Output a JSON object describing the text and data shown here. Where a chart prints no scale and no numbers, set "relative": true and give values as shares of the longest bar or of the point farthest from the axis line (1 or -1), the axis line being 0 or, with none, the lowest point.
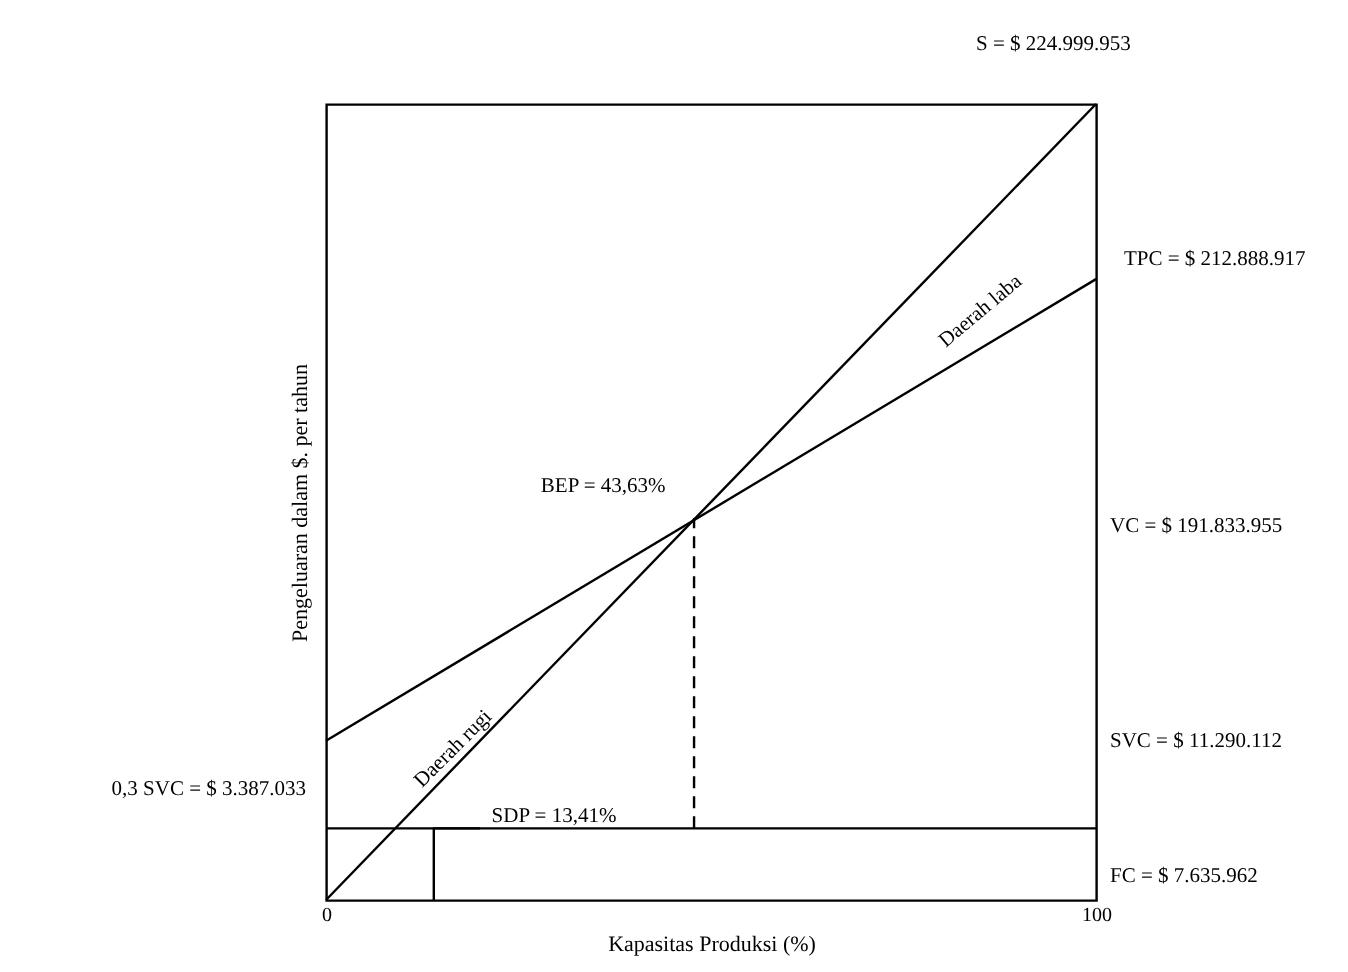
{
  "chart_data": {
    "type": "line",
    "relative": true,
    "xlabel": "Kapasitas Produksi (%)",
    "ylabel": "Pengeluaran dalam $. per tahun",
    "xlim": [
      0,
      100
    ],
    "xticks": [
      0,
      100
    ],
    "grid": false,
    "marker": "none",
    "series": [
      {
        "x": [
          0,
          100
        ],
        "values": [
          0,
          1
        ],
        "color": "#000000",
        "line_style": "solid"
      },
      {
        "x": [
          0,
          100
        ],
        "values": [
          0.2,
          0.78
        ],
        "color": "#000000",
        "line_style": "solid"
      },
      {
        "x": [
          0,
          100
        ],
        "values": [
          0.09,
          0.09
        ],
        "color": "#000000",
        "line_style": "solid"
      },
      {
        "x": [
          47.8,
          47.8
        ],
        "values": [
          0.09,
          0.48
        ],
        "color": "#000000",
        "line_style": "dashed"
      },
      {
        "x": [
          14,
          14,
          20
        ],
        "values": [
          0,
          0.09,
          0.09
        ],
        "color": "#000000",
        "line_style": "solid"
      }
    ],
    "annotations": [
      "S = $ 224.999.953",
      "TPC = $ 212.888.917",
      "VC = $ 191.833.955",
      "SVC = $ 11.290.112",
      "FC = $ 7.635.962",
      "0,3 SVC = $ 3.387.033",
      "BEP = 43,63%",
      "SDP = 13,41%",
      "Daerah laba",
      "Daerah rugi"
    ]
  }
}
